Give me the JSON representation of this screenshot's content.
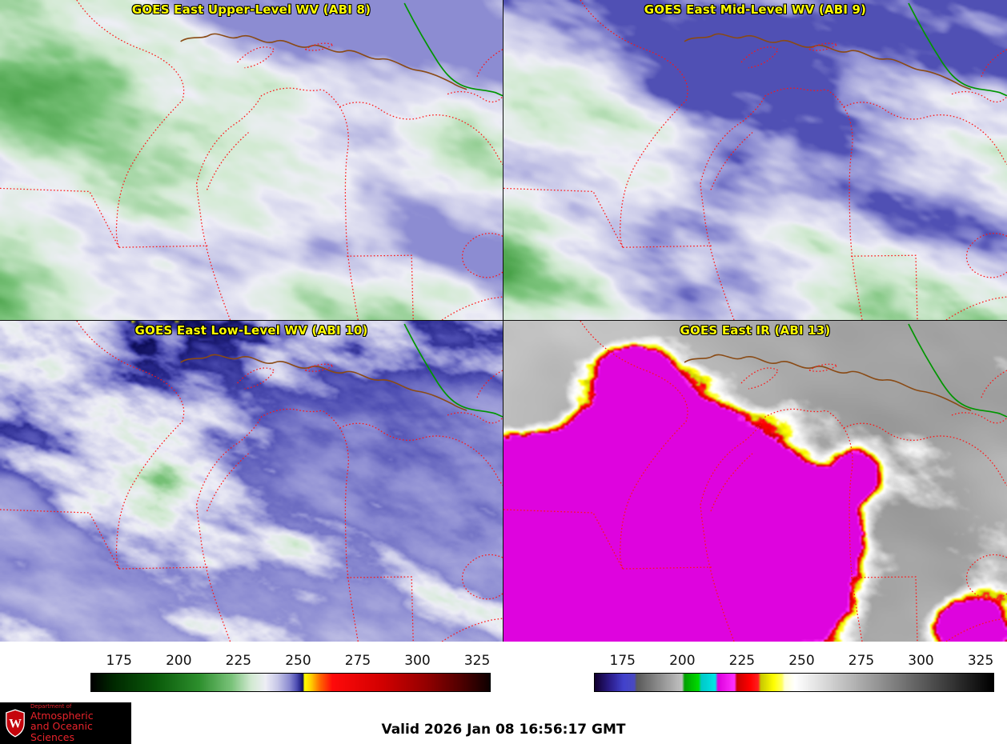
{
  "style": {
    "panel_title_color": "#ffff00",
    "tick_label_color": "#111111",
    "valid_text_color": "#000000",
    "background": "#ffffff"
  },
  "panels": [
    {
      "id": "abi8",
      "title": "GOES East Upper-Level WV (ABI 8)",
      "colormap": "wv"
    },
    {
      "id": "abi9",
      "title": "GOES East Mid-Level WV (ABI 9)",
      "colormap": "wv"
    },
    {
      "id": "abi10",
      "title": "GOES East Low-Level WV (ABI 10)",
      "colormap": "wv"
    },
    {
      "id": "abi13",
      "title": "GOES East IR (ABI 13)",
      "colormap": "ir"
    }
  ],
  "map_overlay": {
    "state_line_color": "#ff1414",
    "international_border_color": "#009600",
    "shoreline_color": "#8a4a14"
  },
  "colorbars": [
    {
      "name": "wv",
      "ticks": [
        175,
        200,
        225,
        250,
        275,
        300,
        325
      ],
      "temp_min": 163,
      "temp_max": 330,
      "stops": [
        [
          163,
          "#000000"
        ],
        [
          172,
          "#002800"
        ],
        [
          190,
          "#0a5a0a"
        ],
        [
          208,
          "#2d8f2d"
        ],
        [
          222,
          "#7cc47c"
        ],
        [
          230,
          "#d2ead2"
        ],
        [
          236,
          "#eeeef6"
        ],
        [
          241,
          "#c8c8e8"
        ],
        [
          246,
          "#8c8cd2"
        ],
        [
          249,
          "#5050b4"
        ],
        [
          250.6,
          "#28288c"
        ],
        [
          251.8,
          "#0a0a50"
        ],
        [
          252.2,
          "#ffff00"
        ],
        [
          255,
          "#ffd200"
        ],
        [
          259,
          "#ff6400"
        ],
        [
          264,
          "#ff0a0a"
        ],
        [
          285,
          "#d20000"
        ],
        [
          303,
          "#960000"
        ],
        [
          318,
          "#500000"
        ],
        [
          330,
          "#0f0000"
        ]
      ]
    },
    {
      "name": "ir",
      "ticks": [
        175,
        200,
        225,
        250,
        275,
        300,
        325
      ],
      "temp_min": 163,
      "temp_max": 330,
      "stops": [
        [
          163,
          "#120030"
        ],
        [
          169,
          "#2a1c86"
        ],
        [
          175,
          "#4242cc"
        ],
        [
          179.5,
          "#4a4ac0"
        ],
        [
          180.5,
          "#5a5a5a"
        ],
        [
          199.5,
          "#c2c2c2"
        ],
        [
          200.5,
          "#00a000"
        ],
        [
          206.5,
          "#00dc00"
        ],
        [
          207.5,
          "#00c8c8"
        ],
        [
          213.5,
          "#00e6e6"
        ],
        [
          214.5,
          "#dc00dc"
        ],
        [
          221.5,
          "#ff32ff"
        ],
        [
          222.5,
          "#c80000"
        ],
        [
          228,
          "#ff0000"
        ],
        [
          231.5,
          "#ff2020"
        ],
        [
          232.5,
          "#c8c800"
        ],
        [
          238,
          "#ffff00"
        ],
        [
          241.5,
          "#ffff64"
        ],
        [
          242.5,
          "#ffffd2"
        ],
        [
          247,
          "#ffffff"
        ],
        [
          330,
          "#000000"
        ]
      ]
    }
  ],
  "footer": {
    "valid_time": "Valid 2026 Jan 08 16:56:17 GMT"
  },
  "logo": {
    "line1": "Department of",
    "line2": "Atmospheric",
    "line3": "and Oceanic Sciences",
    "crest_letter": "W",
    "crest_color": "#c5050c",
    "text_color": "#e8232b",
    "background_color": "#000000"
  }
}
